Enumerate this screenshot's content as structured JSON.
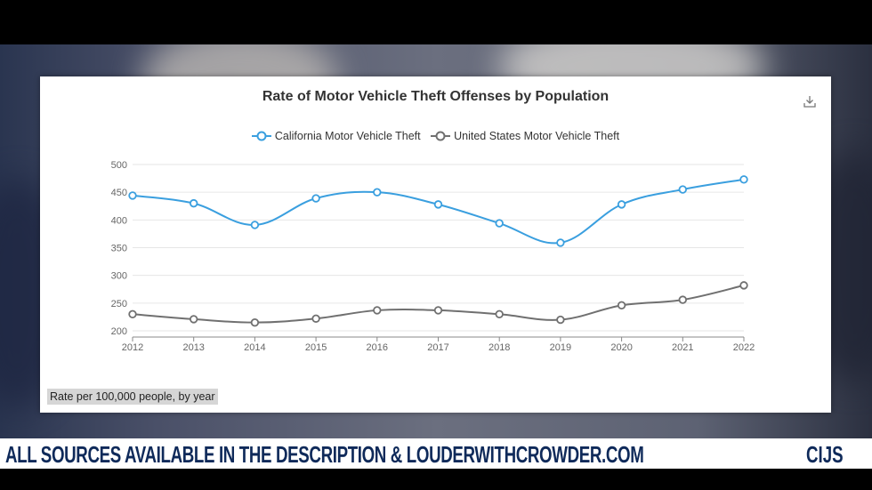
{
  "chart_data": {
    "type": "line",
    "title": "Rate of Motor Vehicle Theft Offenses by Population",
    "categories": [
      "2012",
      "2013",
      "2014",
      "2015",
      "2016",
      "2017",
      "2018",
      "2019",
      "2020",
      "2021",
      "2022"
    ],
    "series": [
      {
        "name": "California Motor Vehicle Theft",
        "color": "#3a9fdf",
        "values": [
          444,
          430,
          391,
          439,
          450,
          428,
          394,
          359,
          428,
          455,
          473
        ]
      },
      {
        "name": "United States Motor Vehicle Theft",
        "color": "#707070",
        "values": [
          230,
          221,
          215,
          222,
          237,
          237,
          230,
          220,
          246,
          256,
          282
        ]
      }
    ],
    "ylim": [
      200,
      500
    ],
    "yticks": [
      200,
      250,
      300,
      350,
      400,
      450,
      500
    ],
    "xlabel": "",
    "ylabel": "",
    "caption": "Rate per 100,000 people, by year"
  },
  "banner": {
    "text": "ALL SOURCES AVAILABLE IN THE DESCRIPTION & LOUDERWITHCROWDER.COM",
    "tag": "CIJS"
  },
  "icons": {
    "download": "download-icon"
  }
}
